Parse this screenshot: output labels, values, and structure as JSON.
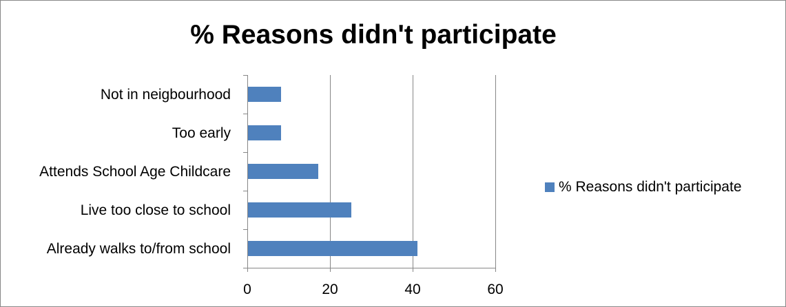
{
  "chart_data": {
    "type": "bar",
    "orientation": "horizontal",
    "title": "% Reasons didn't participate",
    "categories": [
      "Already walks to/from school",
      "Live too close to school",
      "Attends School Age Childcare",
      "Too early",
      "Not in neigbourhood"
    ],
    "series": [
      {
        "name": "% Reasons didn't participate",
        "values": [
          41,
          25,
          17,
          8,
          8
        ],
        "color": "#4F81BD"
      }
    ],
    "xlim": [
      0,
      60
    ],
    "xticks": [
      0,
      20,
      40,
      60
    ],
    "xlabel": "",
    "ylabel": "",
    "grid": "vertical major gridlines",
    "legend_position": "right",
    "colors": {
      "gridline": "#868686",
      "axis": "#868686",
      "border": "#878787"
    }
  }
}
